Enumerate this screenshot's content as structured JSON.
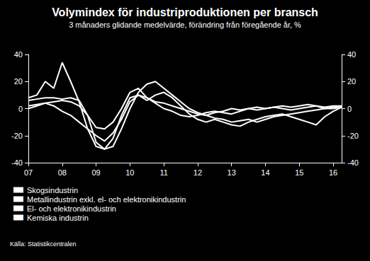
{
  "chart_data": {
    "type": "line",
    "title": "Volymindex för industriproduktionen per bransch",
    "subtitle": "3 månaders glidande medelvärde, förändring från föregående år, %",
    "source": "Källa: Statistikcentralen",
    "categories": [
      "07",
      null,
      null,
      null,
      "08",
      null,
      null,
      null,
      "09",
      null,
      null,
      null,
      "10",
      null,
      null,
      null,
      "11",
      null,
      null,
      null,
      "12",
      null,
      null,
      null,
      "13",
      null,
      null,
      null,
      "14",
      null,
      null,
      null,
      "15",
      null,
      null,
      null,
      "16",
      null
    ],
    "series": [
      {
        "name": "Skogsindustrin",
        "color": "#ffffff",
        "values": [
          2,
          3,
          4,
          2,
          -2,
          -5,
          -10,
          -15,
          -20,
          -24,
          -18,
          -8,
          5,
          10,
          8,
          4,
          0,
          -2,
          -5,
          -6,
          -5,
          -3,
          -2,
          -3,
          -4,
          -2,
          0,
          -1,
          0,
          1,
          0,
          -1,
          0,
          1,
          2,
          0,
          1,
          2
        ]
      },
      {
        "name": "Metallindustrin exkl. el- och elektronikindustrin",
        "color": "#ffffff",
        "values": [
          6,
          7,
          8,
          8,
          7,
          8,
          6,
          -5,
          -25,
          -30,
          -28,
          -15,
          0,
          12,
          18,
          20,
          15,
          10,
          5,
          0,
          -3,
          -5,
          -7,
          -8,
          -10,
          -9,
          -8,
          -10,
          -8,
          -6,
          -5,
          -4,
          -3,
          -2,
          -1,
          0,
          0,
          1
        ]
      },
      {
        "name": "El- och elektronikindustrin",
        "color": "#ffffff",
        "values": [
          8,
          10,
          20,
          15,
          34,
          20,
          5,
          -15,
          -28,
          -30,
          -22,
          -5,
          8,
          10,
          6,
          10,
          12,
          8,
          2,
          -4,
          -8,
          -10,
          -8,
          -10,
          -12,
          -13,
          -10,
          -8,
          -6,
          -5,
          -4,
          -6,
          -8,
          -10,
          -12,
          -6,
          -2,
          1
        ]
      },
      {
        "name": "Kemiska industrin",
        "color": "#ffffff",
        "values": [
          0,
          2,
          4,
          5,
          6,
          5,
          2,
          -5,
          -14,
          -15,
          -10,
          0,
          12,
          15,
          8,
          5,
          4,
          2,
          0,
          -2,
          -4,
          -5,
          -3,
          -2,
          0,
          -1,
          0,
          1,
          0,
          1,
          2,
          1,
          2,
          3,
          2,
          1,
          2,
          2
        ]
      }
    ],
    "ylim": [
      -40,
      40
    ],
    "yticks": [
      -40,
      -20,
      0,
      20,
      40
    ],
    "grid": false,
    "legend": "bottom-left"
  }
}
